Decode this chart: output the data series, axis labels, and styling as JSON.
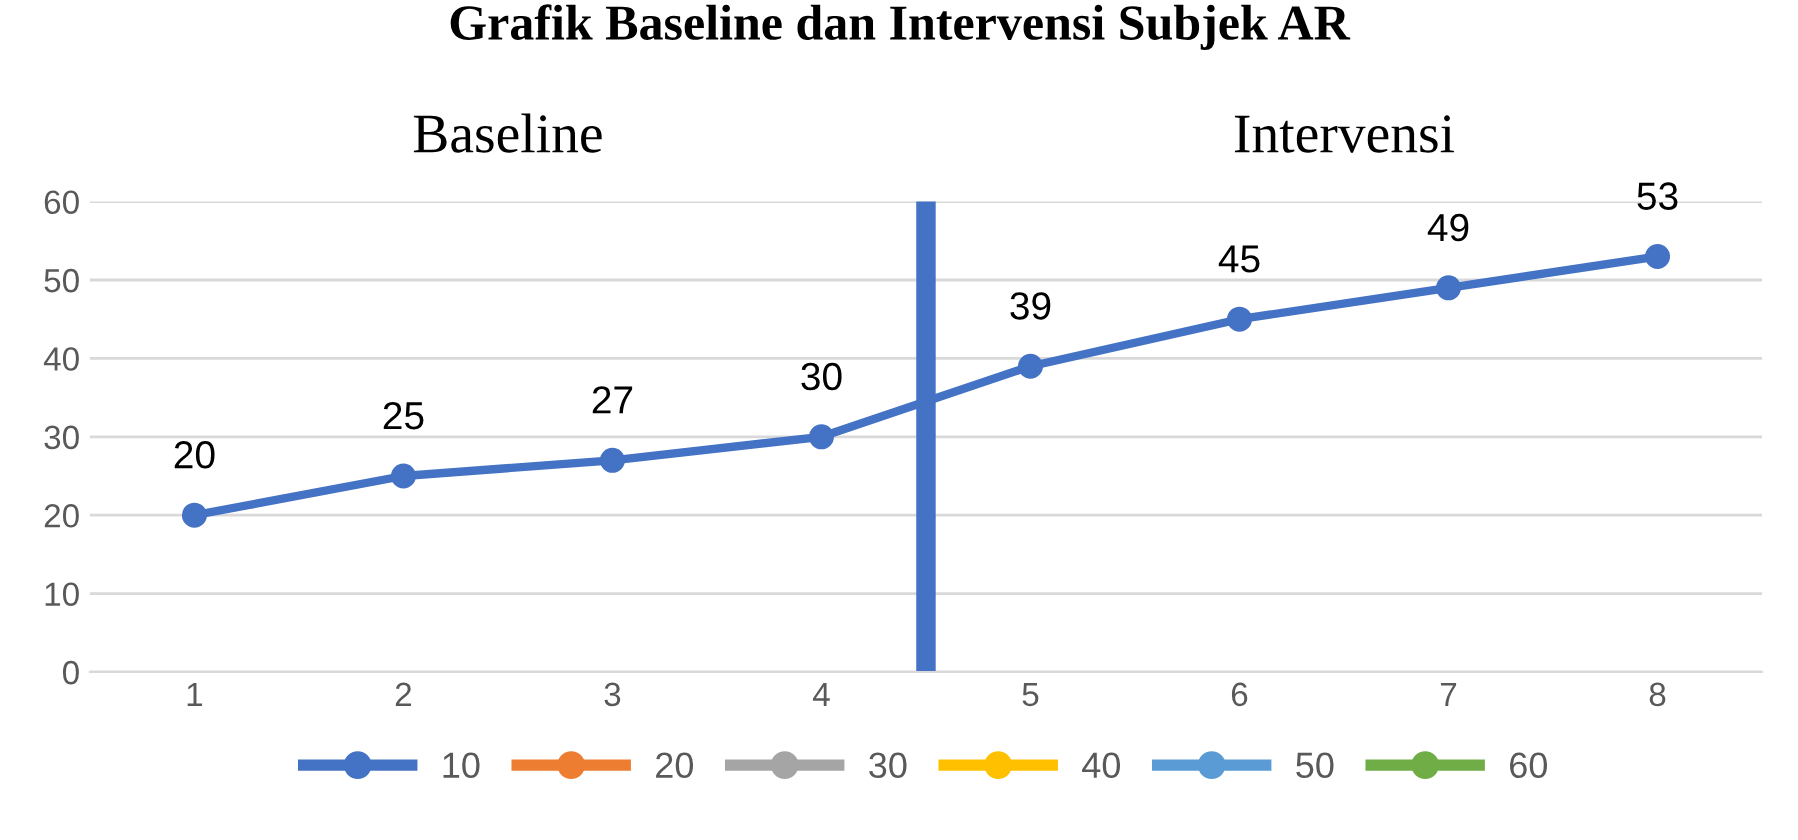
{
  "chart_data": {
    "type": "line",
    "title": "Grafik Baseline dan Intervensi Subjek AR",
    "x": [
      1,
      2,
      3,
      4,
      5,
      6,
      7,
      8
    ],
    "xlim": [
      0.5,
      8.5
    ],
    "xticks": [
      1,
      2,
      3,
      4,
      5,
      6,
      7,
      8
    ],
    "ylim": [
      0,
      60
    ],
    "yticks": [
      0,
      10,
      20,
      30,
      40,
      50,
      60
    ],
    "grid": "y",
    "marker": "circle",
    "line_style": "solid",
    "data_labels": true,
    "legend": "bottom",
    "series": [
      {
        "name": "10",
        "color": "#4472c4",
        "values": [
          20,
          25,
          27,
          30,
          39,
          45,
          49,
          53
        ]
      },
      {
        "name": "20",
        "color": "#ed7d31",
        "values": [
          null,
          null,
          null,
          null,
          null,
          null,
          null,
          null
        ]
      },
      {
        "name": "30",
        "color": "#a5a5a5",
        "values": [
          null,
          null,
          null,
          null,
          null,
          null,
          null,
          null
        ]
      },
      {
        "name": "40",
        "color": "#ffc000",
        "values": [
          null,
          null,
          null,
          null,
          null,
          null,
          null,
          null
        ]
      },
      {
        "name": "50",
        "color": "#5b9bd5",
        "values": [
          null,
          null,
          null,
          null,
          null,
          null,
          null,
          null
        ]
      },
      {
        "name": "60",
        "color": "#70ad47",
        "values": [
          null,
          null,
          null,
          null,
          null,
          null,
          null,
          null
        ]
      }
    ],
    "ref_lines": [
      {
        "axis": "x",
        "value": 4.5,
        "color": "#4472c4"
      }
    ],
    "annotations": [
      "Baseline",
      "Intervensi"
    ]
  }
}
